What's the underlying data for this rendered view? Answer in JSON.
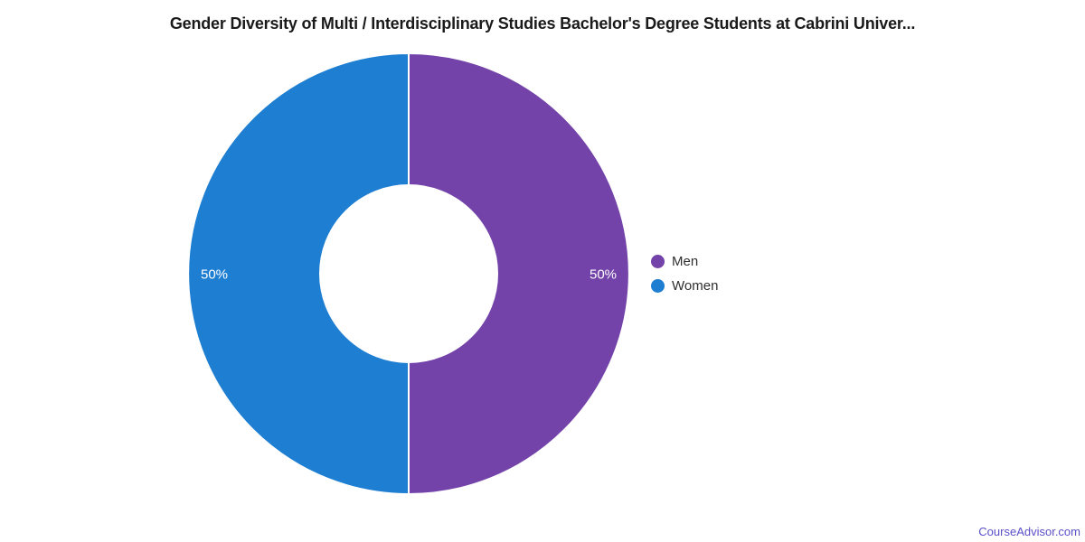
{
  "chart_data": {
    "type": "pie",
    "subtype": "donut",
    "title": "Gender Diversity of Multi / Interdisciplinary Studies Bachelor's Degree Students at Cabrini Univer...",
    "series": [
      {
        "name": "Men",
        "value": 50,
        "label": "50%",
        "color": "#7343a9"
      },
      {
        "name": "Women",
        "value": 50,
        "label": "50%",
        "color": "#1e7ed2"
      }
    ],
    "start_angle_deg": 0,
    "direction": "clockwise",
    "inner_radius_ratio": 0.4,
    "data_label_color": "#ffffff",
    "legend_position": "right",
    "grid": "off"
  },
  "legend_marker_shape": "circle",
  "watermark": {
    "text": "CourseAdvisor.com",
    "color": "#5a50c8"
  }
}
